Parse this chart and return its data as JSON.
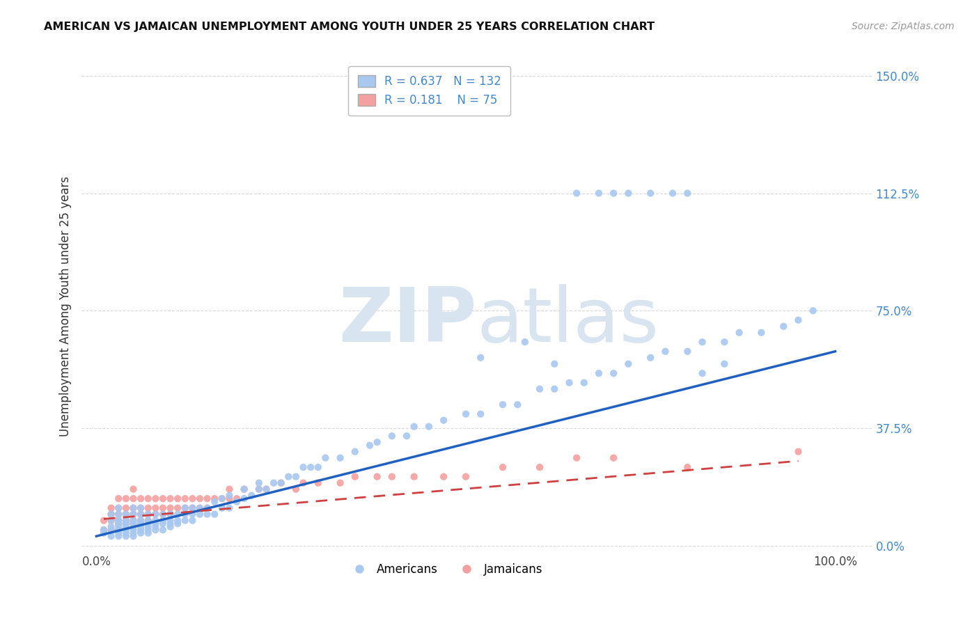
{
  "title": "AMERICAN VS JAMAICAN UNEMPLOYMENT AMONG YOUTH UNDER 25 YEARS CORRELATION CHART",
  "source": "Source: ZipAtlas.com",
  "ylabel": "Unemployment Among Youth under 25 years",
  "xlim": [
    -0.02,
    1.05
  ],
  "ylim": [
    -0.02,
    1.55
  ],
  "yticks": [
    0.0,
    0.375,
    0.75,
    1.125,
    1.5
  ],
  "ytick_labels": [
    "0.0%",
    "37.5%",
    "75.0%",
    "112.5%",
    "150.0%"
  ],
  "legend_blue_r": "0.637",
  "legend_blue_n": "132",
  "legend_pink_r": "0.181",
  "legend_pink_n": "75",
  "blue_color": "#a8c8f0",
  "pink_color": "#f5a0a0",
  "trend_blue_color": "#2060c0",
  "trend_pink_color": "#d04040",
  "tick_color": "#4488cc",
  "watermark_zip": "ZIP",
  "watermark_atlas": "atlas",
  "watermark_color": "#d8e4f0",
  "background_color": "#ffffff",
  "grid_color": "#d8d8d8",
  "americans_x": [
    0.01,
    0.01,
    0.02,
    0.02,
    0.02,
    0.02,
    0.02,
    0.03,
    0.03,
    0.03,
    0.03,
    0.03,
    0.03,
    0.03,
    0.03,
    0.04,
    0.04,
    0.04,
    0.04,
    0.04,
    0.04,
    0.04,
    0.05,
    0.05,
    0.05,
    0.05,
    0.05,
    0.05,
    0.05,
    0.05,
    0.06,
    0.06,
    0.06,
    0.06,
    0.06,
    0.06,
    0.06,
    0.07,
    0.07,
    0.07,
    0.07,
    0.07,
    0.07,
    0.08,
    0.08,
    0.08,
    0.08,
    0.08,
    0.09,
    0.09,
    0.09,
    0.09,
    0.1,
    0.1,
    0.1,
    0.1,
    0.11,
    0.11,
    0.11,
    0.12,
    0.12,
    0.12,
    0.13,
    0.13,
    0.13,
    0.14,
    0.14,
    0.15,
    0.15,
    0.16,
    0.16,
    0.17,
    0.17,
    0.18,
    0.18,
    0.19,
    0.2,
    0.2,
    0.21,
    0.22,
    0.22,
    0.23,
    0.24,
    0.25,
    0.26,
    0.27,
    0.28,
    0.29,
    0.3,
    0.31,
    0.33,
    0.35,
    0.37,
    0.38,
    0.4,
    0.42,
    0.43,
    0.45,
    0.47,
    0.5,
    0.52,
    0.55,
    0.57,
    0.6,
    0.62,
    0.64,
    0.66,
    0.68,
    0.7,
    0.72,
    0.75,
    0.77,
    0.8,
    0.82,
    0.85,
    0.87,
    0.9,
    0.93,
    0.95,
    0.97,
    0.52,
    0.58,
    0.62,
    0.65,
    0.68,
    0.7,
    0.72,
    0.75,
    0.78,
    0.8,
    0.82,
    0.85
  ],
  "americans_y": [
    0.04,
    0.05,
    0.03,
    0.05,
    0.06,
    0.08,
    0.1,
    0.03,
    0.04,
    0.05,
    0.06,
    0.07,
    0.08,
    0.1,
    0.12,
    0.03,
    0.04,
    0.05,
    0.06,
    0.07,
    0.08,
    0.1,
    0.03,
    0.04,
    0.05,
    0.06,
    0.07,
    0.08,
    0.1,
    0.12,
    0.04,
    0.05,
    0.06,
    0.07,
    0.08,
    0.1,
    0.12,
    0.04,
    0.05,
    0.06,
    0.07,
    0.08,
    0.1,
    0.05,
    0.06,
    0.07,
    0.08,
    0.1,
    0.05,
    0.07,
    0.08,
    0.1,
    0.06,
    0.07,
    0.08,
    0.1,
    0.07,
    0.08,
    0.1,
    0.08,
    0.1,
    0.12,
    0.08,
    0.1,
    0.12,
    0.1,
    0.12,
    0.1,
    0.12,
    0.1,
    0.14,
    0.12,
    0.15,
    0.12,
    0.16,
    0.14,
    0.15,
    0.18,
    0.16,
    0.18,
    0.2,
    0.18,
    0.2,
    0.2,
    0.22,
    0.22,
    0.25,
    0.25,
    0.25,
    0.28,
    0.28,
    0.3,
    0.32,
    0.33,
    0.35,
    0.35,
    0.38,
    0.38,
    0.4,
    0.42,
    0.42,
    0.45,
    0.45,
    0.5,
    0.5,
    0.52,
    0.52,
    0.55,
    0.55,
    0.58,
    0.6,
    0.62,
    0.62,
    0.65,
    0.65,
    0.68,
    0.68,
    0.7,
    0.72,
    0.75,
    0.6,
    0.65,
    0.58,
    1.125,
    1.125,
    1.125,
    1.125,
    1.125,
    1.125,
    1.125,
    0.55,
    0.58
  ],
  "jamaicans_x": [
    0.01,
    0.01,
    0.02,
    0.02,
    0.02,
    0.02,
    0.03,
    0.03,
    0.03,
    0.03,
    0.03,
    0.03,
    0.04,
    0.04,
    0.04,
    0.04,
    0.04,
    0.05,
    0.05,
    0.05,
    0.05,
    0.05,
    0.05,
    0.06,
    0.06,
    0.06,
    0.06,
    0.07,
    0.07,
    0.07,
    0.07,
    0.08,
    0.08,
    0.08,
    0.09,
    0.09,
    0.09,
    0.1,
    0.1,
    0.1,
    0.11,
    0.11,
    0.12,
    0.12,
    0.13,
    0.13,
    0.14,
    0.14,
    0.15,
    0.15,
    0.16,
    0.17,
    0.18,
    0.18,
    0.19,
    0.2,
    0.22,
    0.23,
    0.25,
    0.27,
    0.28,
    0.3,
    0.33,
    0.35,
    0.38,
    0.4,
    0.43,
    0.47,
    0.5,
    0.55,
    0.6,
    0.65,
    0.7,
    0.8,
    0.95
  ],
  "jamaicans_y": [
    0.05,
    0.08,
    0.05,
    0.08,
    0.1,
    0.12,
    0.05,
    0.07,
    0.08,
    0.1,
    0.12,
    0.15,
    0.07,
    0.08,
    0.1,
    0.12,
    0.15,
    0.07,
    0.08,
    0.1,
    0.12,
    0.15,
    0.18,
    0.08,
    0.1,
    0.12,
    0.15,
    0.08,
    0.1,
    0.12,
    0.15,
    0.1,
    0.12,
    0.15,
    0.1,
    0.12,
    0.15,
    0.1,
    0.12,
    0.15,
    0.12,
    0.15,
    0.12,
    0.15,
    0.12,
    0.15,
    0.12,
    0.15,
    0.12,
    0.15,
    0.15,
    0.15,
    0.15,
    0.18,
    0.15,
    0.18,
    0.18,
    0.18,
    0.2,
    0.18,
    0.2,
    0.2,
    0.2,
    0.22,
    0.22,
    0.22,
    0.22,
    0.22,
    0.22,
    0.25,
    0.25,
    0.28,
    0.28,
    0.25,
    0.3
  ],
  "trend_blue_x0": 0.0,
  "trend_blue_x1": 1.0,
  "trend_blue_y0": 0.03,
  "trend_blue_y1": 0.62,
  "trend_pink_x0": 0.01,
  "trend_pink_x1": 0.95,
  "trend_pink_y0": 0.085,
  "trend_pink_y1": 0.27
}
